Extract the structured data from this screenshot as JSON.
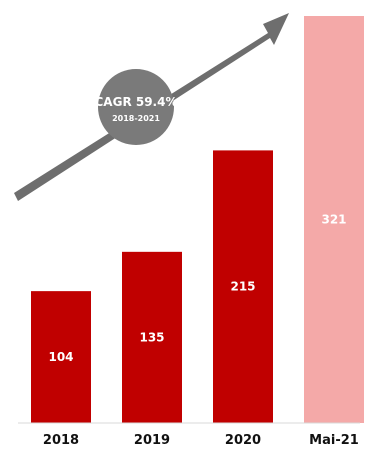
{
  "chart_data": {
    "type": "bar",
    "categories": [
      "2018",
      "2019",
      "2020",
      "Mai-21"
    ],
    "values": [
      104,
      135,
      215,
      321
    ],
    "title": "",
    "xlabel": "",
    "ylabel": "",
    "ylim": [
      0,
      321
    ],
    "grid": false,
    "bar_colors": [
      "#c00000",
      "#c00000",
      "#c00000",
      "#f4a9a8"
    ],
    "annotation": {
      "label": "CAGR 59.4%",
      "sublabel": "2018-2021",
      "arrow_color": "#6e6e6e",
      "circle_color": "#7a7a7a"
    }
  }
}
